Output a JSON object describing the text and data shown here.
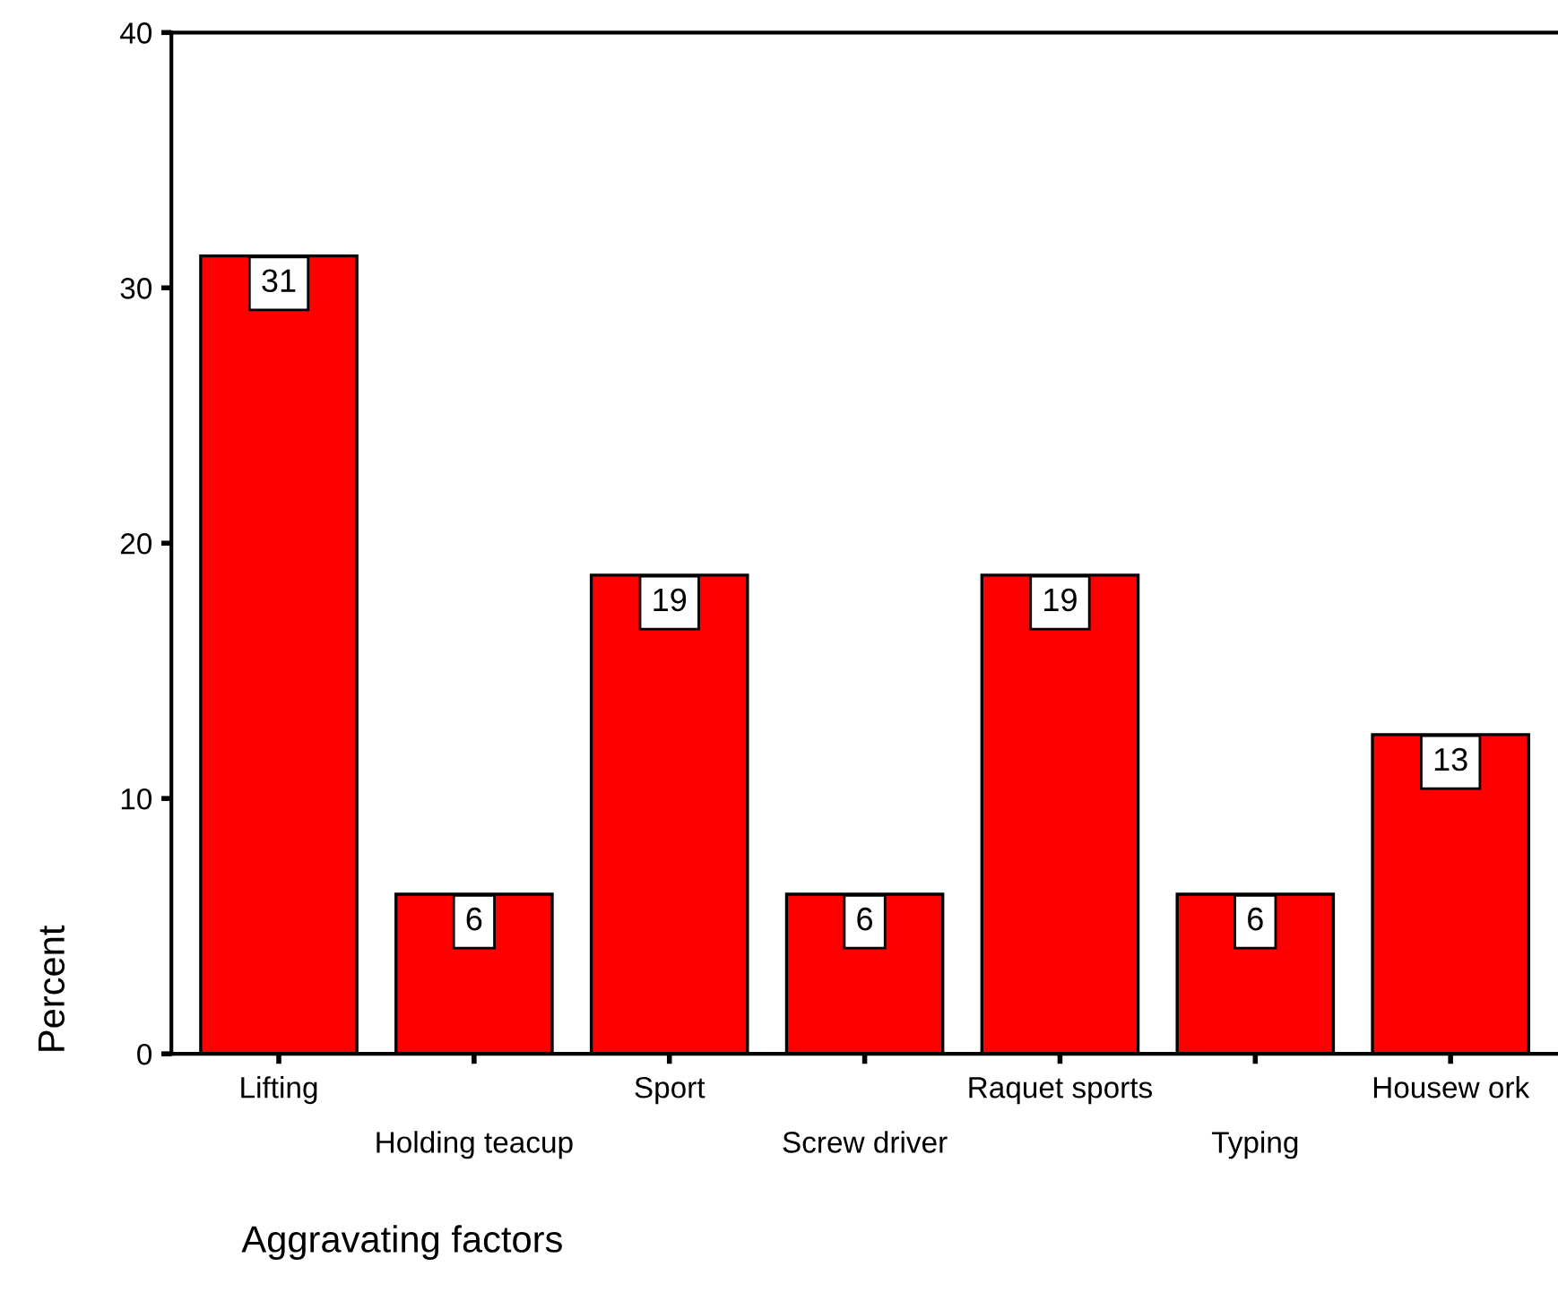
{
  "chart_data": {
    "type": "bar",
    "xlabel": "Aggravating factors",
    "ylabel": "Percent",
    "categories": [
      "Lifting",
      "Holding teacup",
      "Sport",
      "Screw driver",
      "Raquet sports",
      "Typing",
      "Housew ork"
    ],
    "values": [
      31.25,
      6.25,
      18.75,
      6.25,
      18.75,
      6.25,
      12.5
    ],
    "value_labels": [
      "31",
      "6",
      "19",
      "6",
      "19",
      "6",
      "13"
    ],
    "color": "#ff0000",
    "ylim": [
      0,
      40
    ],
    "yticks": [
      0,
      10,
      20,
      30,
      40
    ],
    "grid": false
  }
}
